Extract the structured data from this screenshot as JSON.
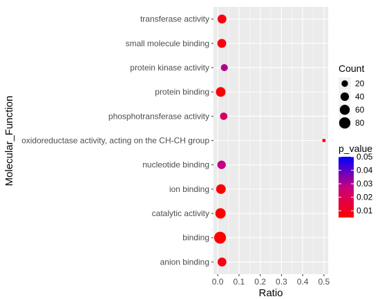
{
  "chart_data": {
    "type": "scatter",
    "xlabel": "Ratio",
    "ylabel": "Molecular_Function",
    "xlim": [
      -0.02,
      0.52
    ],
    "x_ticks": [
      0.0,
      0.1,
      0.2,
      0.3,
      0.4,
      0.5
    ],
    "x_tick_labels": [
      "0.0",
      "0.1",
      "0.2",
      "0.3",
      "0.4",
      "0.5"
    ],
    "grid": true,
    "categories": [
      "transferase activity",
      "small molecule binding",
      "protein kinase activity",
      "protein binding",
      "phosphotransferase activity",
      "oxidoreductase activity, acting on the CH-CH group",
      "nucleotide binding",
      "ion binding",
      "catalytic activity",
      "binding",
      "anion binding"
    ],
    "points": [
      {
        "term": "transferase activity",
        "ratio": 0.02,
        "count": 45,
        "p_value": 0.008
      },
      {
        "term": "small molecule binding",
        "ratio": 0.019,
        "count": 45,
        "p_value": 0.008
      },
      {
        "term": "protein kinase activity",
        "ratio": 0.031,
        "count": 25,
        "p_value": 0.03
      },
      {
        "term": "protein binding",
        "ratio": 0.014,
        "count": 55,
        "p_value": 0.006
      },
      {
        "term": "phosphotransferase activity",
        "ratio": 0.028,
        "count": 28,
        "p_value": 0.022
      },
      {
        "term": "oxidoreductase activity, acting on the CH-CH group",
        "ratio": 0.5,
        "count": 3,
        "p_value": 0.005
      },
      {
        "term": "nucleotide binding",
        "ratio": 0.018,
        "count": 40,
        "p_value": 0.028
      },
      {
        "term": "ion binding",
        "ratio": 0.015,
        "count": 55,
        "p_value": 0.006
      },
      {
        "term": "catalytic activity",
        "ratio": 0.013,
        "count": 65,
        "p_value": 0.005
      },
      {
        "term": "binding",
        "ratio": 0.011,
        "count": 90,
        "p_value": 0.004
      },
      {
        "term": "anion binding",
        "ratio": 0.02,
        "count": 45,
        "p_value": 0.009
      }
    ],
    "legend_size": {
      "title": "Count",
      "values": [
        20,
        40,
        60,
        80
      ],
      "labels": [
        "20",
        "40",
        "60",
        "80"
      ]
    },
    "legend_color": {
      "title": "p_value",
      "min": 0.005,
      "max": 0.05,
      "ticks": [
        0.01,
        0.02,
        0.03,
        0.04,
        0.05
      ],
      "tick_labels": [
        "0.01",
        "0.02",
        "0.03",
        "0.04",
        "0.05"
      ],
      "low_color": "#ff0000",
      "high_color": "#0000ff"
    },
    "panel_background": "#ebebeb",
    "grid_color": "#ffffff"
  }
}
